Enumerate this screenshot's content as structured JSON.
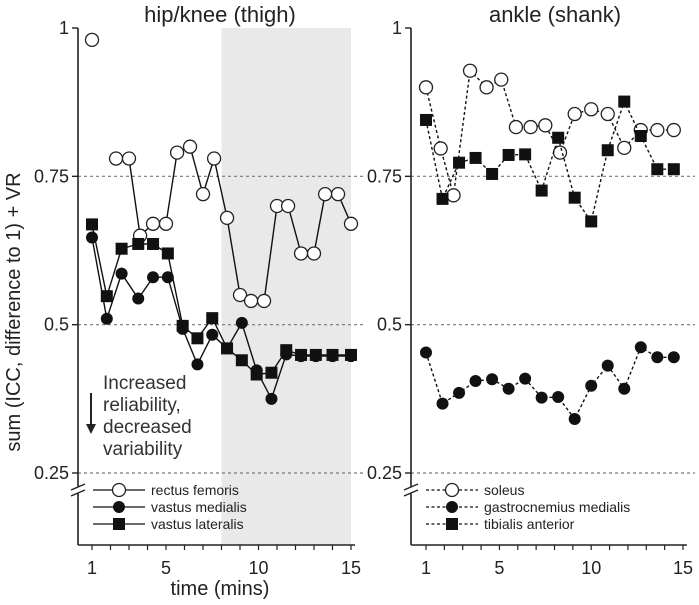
{
  "chart_data": [
    {
      "type": "line",
      "title": "hip/knee (thigh)",
      "xlabel": "time (mins)",
      "ylabel": "sum (ICC, difference to 1) + VR",
      "xlim": [
        1,
        15
      ],
      "ylim": [
        0.25,
        1
      ],
      "xticks": [
        "1",
        "5",
        "10",
        "15"
      ],
      "yticks": [
        "1",
        "0.75",
        "0.5",
        "0.25"
      ],
      "shaded_region": [
        8,
        15
      ],
      "annotation": [
        "Increased",
        "reliability,",
        "decreased",
        "variability"
      ],
      "series": [
        {
          "name": "rectus femoris",
          "marker": "open-circle",
          "line": "solid",
          "x": [
            1,
            1.6,
            2.3,
            3,
            3.6,
            4.3,
            5,
            5.6,
            6.3,
            7,
            7.6,
            8.3,
            9,
            9.6,
            10.3,
            11,
            11.6,
            12.3,
            13,
            13.6,
            14.3,
            15
          ],
          "y": [
            0.98,
            null,
            0.78,
            0.78,
            0.65,
            0.67,
            0.67,
            0.79,
            0.8,
            0.72,
            0.78,
            0.68,
            0.55,
            0.54,
            0.54,
            0.7,
            0.7,
            0.62,
            0.62,
            0.72,
            0.72,
            0.67
          ]
        },
        {
          "name": "vastus medialis",
          "marker": "filled-circle",
          "line": "solid",
          "x": [
            1,
            1.8,
            2.6,
            3.5,
            4.3,
            5.1,
            5.9,
            6.7,
            7.5,
            8.3,
            9.1,
            9.9,
            10.7,
            11.5,
            12.3,
            13.1,
            14.0,
            15
          ],
          "y": [
            0.647,
            0.51,
            0.586,
            0.544,
            0.58,
            0.58,
            0.493,
            0.433,
            0.483,
            0.46,
            0.503,
            0.423,
            0.375,
            0.45,
            0.447,
            0.447,
            0.447,
            0.447
          ]
        },
        {
          "name": "vastus lateralis",
          "marker": "filled-square",
          "line": "solid",
          "x": [
            1,
            1.8,
            2.6,
            3.5,
            4.3,
            5.1,
            5.9,
            6.7,
            7.5,
            8.3,
            9.1,
            9.9,
            10.7,
            11.5,
            12.3,
            13.1,
            14.0,
            15
          ],
          "y": [
            0.669,
            0.548,
            0.628,
            0.636,
            0.636,
            0.62,
            0.498,
            0.477,
            0.511,
            0.46,
            0.44,
            0.416,
            0.419,
            0.457,
            0.449,
            0.449,
            0.449,
            0.449
          ]
        }
      ]
    },
    {
      "type": "line",
      "title": "ankle (shank)",
      "xlim": [
        1,
        15
      ],
      "ylim": [
        0.25,
        1
      ],
      "xticks": [
        "1",
        "5",
        "10",
        "15"
      ],
      "yticks": [
        "1",
        "0.75",
        "0.5",
        "0.25"
      ],
      "series": [
        {
          "name": "soleus",
          "marker": "open-circle",
          "line": "dashed",
          "x": [
            1,
            1.8,
            2.5,
            3.4,
            4.3,
            5.1,
            5.9,
            6.7,
            7.5,
            8.3,
            9.1,
            10,
            10.9,
            11.8,
            12.7,
            13.6,
            14.5
          ],
          "y": [
            0.9,
            0.797,
            0.718,
            0.928,
            0.9,
            0.913,
            0.833,
            0.833,
            0.836,
            0.79,
            0.855,
            0.863,
            0.855,
            0.798,
            0.828,
            0.828,
            0.828
          ]
        },
        {
          "name": "gastrocnemius medialis",
          "marker": "filled-circle",
          "line": "dashed",
          "x": [
            1,
            1.9,
            2.8,
            3.7,
            4.6,
            5.5,
            6.4,
            7.3,
            8.2,
            9.1,
            10,
            10.9,
            11.8,
            12.7,
            13.6,
            14.5
          ],
          "y": [
            0.453,
            0.367,
            0.385,
            0.405,
            0.408,
            0.392,
            0.409,
            0.377,
            0.378,
            0.341,
            0.397,
            0.431,
            0.392,
            0.462,
            0.445,
            0.445
          ]
        },
        {
          "name": "tibialis anterior",
          "marker": "filled-square",
          "line": "dashed",
          "x": [
            1,
            1.9,
            2.8,
            3.7,
            4.6,
            5.5,
            6.4,
            7.3,
            8.2,
            9.1,
            10,
            10.9,
            11.8,
            12.7,
            13.6,
            14.5
          ],
          "y": [
            0.845,
            0.712,
            0.773,
            0.781,
            0.754,
            0.786,
            0.787,
            0.726,
            0.815,
            0.714,
            0.674,
            0.794,
            0.876,
            0.818,
            0.762,
            0.762
          ]
        }
      ]
    }
  ]
}
